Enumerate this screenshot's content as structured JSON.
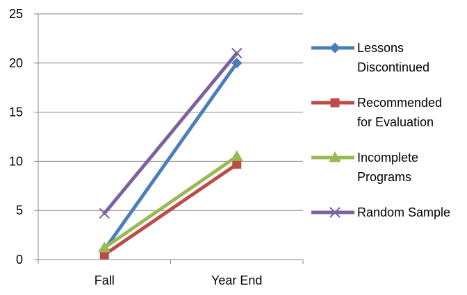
{
  "chart_data": {
    "type": "line",
    "categories": [
      "Fall",
      "Year End"
    ],
    "ylim": [
      0,
      25
    ],
    "yticks": [
      0,
      5,
      10,
      15,
      20,
      25
    ],
    "grid": true,
    "legend_position": "right",
    "series": [
      {
        "name": "Lessons Discontinued",
        "name_lines": [
          "Lessons",
          "Discontinued"
        ],
        "values": [
          1.0,
          20.0
        ],
        "color": "#4a7ebb",
        "marker": "diamond"
      },
      {
        "name": "Recommended for Evaluation",
        "name_lines": [
          "Recommended",
          "for Evaluation"
        ],
        "values": [
          0.5,
          9.7
        ],
        "color": "#be4b48",
        "marker": "square"
      },
      {
        "name": "Incomplete Programs",
        "name_lines": [
          "Incomplete",
          "Programs"
        ],
        "values": [
          1.2,
          10.5
        ],
        "color": "#98b954",
        "marker": "triangle"
      },
      {
        "name": "Random Sample",
        "name_lines": [
          "Random Sample"
        ],
        "values": [
          4.7,
          21.0
        ],
        "color": "#7d60a0",
        "marker": "x"
      }
    ]
  }
}
